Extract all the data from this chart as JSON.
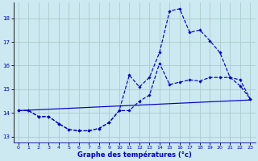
{
  "xlabel": "Graphe des températures (°c)",
  "bg_color": "#cce8f0",
  "grid_color": "#aacccc",
  "line_color": "#0000cc",
  "ylim": [
    12.75,
    18.65
  ],
  "xlim": [
    -0.5,
    23.5
  ],
  "yticks": [
    13,
    14,
    15,
    16,
    17,
    18
  ],
  "xticks": [
    0,
    1,
    2,
    3,
    4,
    5,
    6,
    7,
    8,
    9,
    10,
    11,
    12,
    13,
    14,
    15,
    16,
    17,
    18,
    19,
    20,
    21,
    22,
    23
  ],
  "line1_x": [
    0,
    1,
    2,
    3,
    4,
    5,
    6,
    7,
    8,
    9,
    10,
    11,
    12,
    13,
    14,
    15,
    16,
    17,
    18,
    19,
    20,
    21,
    22,
    23
  ],
  "line1_y": [
    14.1,
    14.1,
    13.85,
    13.85,
    13.55,
    13.3,
    13.25,
    13.25,
    13.35,
    13.6,
    14.1,
    15.6,
    15.1,
    15.5,
    16.55,
    18.3,
    18.4,
    17.4,
    17.5,
    17.05,
    16.55,
    15.5,
    15.15,
    14.6
  ],
  "line2_x": [
    0,
    1,
    2,
    3,
    4,
    5,
    6,
    7,
    8,
    9,
    10,
    11,
    12,
    13,
    14,
    15,
    16,
    17,
    18,
    19,
    20,
    21,
    22,
    23
  ],
  "line2_y": [
    14.1,
    14.1,
    13.85,
    13.85,
    13.55,
    13.3,
    13.25,
    13.25,
    13.35,
    13.6,
    14.1,
    14.1,
    14.5,
    14.75,
    16.1,
    15.2,
    15.3,
    15.4,
    15.35,
    15.5,
    15.5,
    15.5,
    15.4,
    14.6
  ],
  "line3_x": [
    0,
    23
  ],
  "line3_y": [
    14.1,
    14.55
  ]
}
